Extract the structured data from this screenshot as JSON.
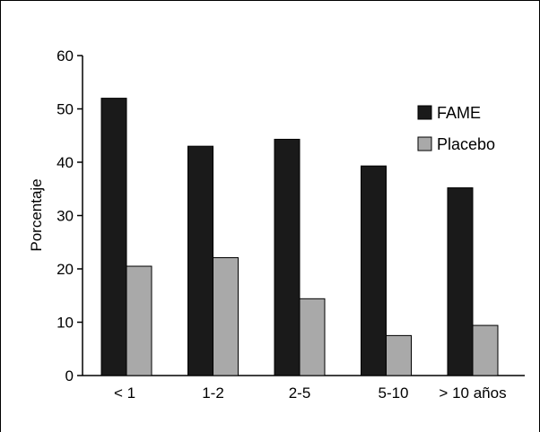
{
  "chart_data": {
    "type": "bar",
    "title": "",
    "xlabel": "",
    "ylabel": "Porcentaje",
    "ylim": [
      0,
      60
    ],
    "yticks": [
      0,
      10,
      20,
      30,
      40,
      50,
      60
    ],
    "categories": [
      "< 1",
      "1-2",
      "2-5",
      "5-10",
      "> 10 años"
    ],
    "series": [
      {
        "name": "FAME",
        "values": [
          52,
          43,
          44.3,
          39.3,
          35.2
        ],
        "color": "#1a1a1a"
      },
      {
        "name": "Placebo",
        "values": [
          20.5,
          22.1,
          14.4,
          7.5,
          9.4
        ],
        "color": "#a9a9a9"
      }
    ],
    "legend_position": "top-right",
    "grid": false
  }
}
